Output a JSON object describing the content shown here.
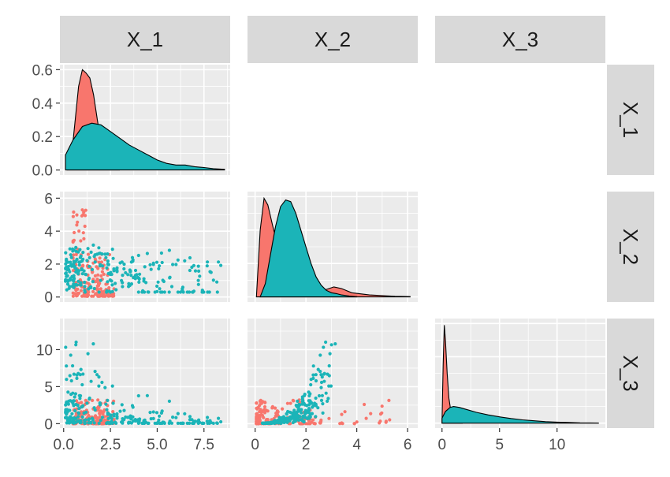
{
  "chart_data": {
    "type": "scatter",
    "title": "",
    "variables": [
      "X_1",
      "X_2",
      "X_3"
    ],
    "groups": [
      {
        "color": "#F8766D"
      },
      {
        "color": "#1BB4B8"
      }
    ],
    "axes": {
      "X_1": {
        "range": [
          -0.2,
          8.9
        ],
        "ticks": [
          0.0,
          2.5,
          5.0,
          7.5
        ],
        "tick_labels": [
          "0.0",
          "2.5",
          "5.0",
          "7.5"
        ]
      },
      "X_2": {
        "range": [
          -0.3,
          6.4
        ],
        "ticks": [
          0,
          2,
          4,
          6
        ],
        "tick_labels": [
          "0",
          "2",
          "4",
          "6"
        ]
      },
      "X_3": {
        "range": [
          -0.6,
          14.2
        ],
        "ticks": [
          0,
          5,
          10
        ],
        "tick_labels": [
          "0",
          "5",
          "10"
        ]
      }
    },
    "density_axis": {
      "range": [
        -0.03,
        0.63
      ],
      "ticks": [
        0.0,
        0.2,
        0.4,
        0.6
      ],
      "tick_labels": [
        "0.0",
        "0.2",
        "0.4",
        "0.6"
      ]
    },
    "densities": {
      "X_1": [
        {
          "x": [
            0.2,
            0.4,
            0.6,
            0.8,
            1.0,
            1.2,
            1.4,
            1.6,
            1.8,
            2.0,
            2.2,
            2.4,
            2.6,
            3.0
          ],
          "y": [
            0.0,
            0.06,
            0.28,
            0.5,
            0.6,
            0.58,
            0.55,
            0.45,
            0.3,
            0.16,
            0.07,
            0.03,
            0.01,
            0.0
          ]
        },
        {
          "x": [
            0.1,
            0.5,
            1.0,
            1.5,
            2.0,
            2.5,
            3.0,
            3.5,
            4.0,
            4.5,
            5.0,
            5.5,
            6.0,
            6.5,
            7.0,
            7.5,
            8.0,
            8.6
          ],
          "y": [
            0.09,
            0.18,
            0.26,
            0.28,
            0.27,
            0.23,
            0.19,
            0.15,
            0.12,
            0.09,
            0.06,
            0.04,
            0.03,
            0.03,
            0.02,
            0.015,
            0.008,
            0.004
          ]
        }
      ],
      "X_2": [
        {
          "x": [
            0.05,
            0.2,
            0.35,
            0.5,
            0.7,
            0.9,
            1.1,
            1.4,
            1.8,
            2.3,
            2.8,
            3.1,
            3.4,
            3.8,
            4.5,
            5.0,
            5.5,
            6.1
          ],
          "y": [
            0.0,
            0.4,
            0.59,
            0.55,
            0.42,
            0.3,
            0.2,
            0.12,
            0.06,
            0.03,
            0.045,
            0.06,
            0.05,
            0.025,
            0.012,
            0.008,
            0.004,
            0.002
          ]
        },
        {
          "x": [
            0.2,
            0.4,
            0.6,
            0.8,
            1.0,
            1.2,
            1.4,
            1.6,
            1.8,
            2.0,
            2.2,
            2.4,
            2.6,
            2.8,
            3.0,
            3.2,
            3.4,
            3.7,
            4.0
          ],
          "y": [
            0.0,
            0.08,
            0.25,
            0.42,
            0.54,
            0.58,
            0.57,
            0.5,
            0.4,
            0.3,
            0.2,
            0.12,
            0.07,
            0.04,
            0.025,
            0.02,
            0.012,
            0.006,
            0.002
          ]
        }
      ],
      "X_3": [
        {
          "x": [
            0.0,
            0.1,
            0.2,
            0.3,
            0.45,
            0.6,
            0.8,
            1.0,
            1.3,
            1.8
          ],
          "y": [
            0.02,
            0.35,
            0.59,
            0.5,
            0.3,
            0.15,
            0.06,
            0.02,
            0.005,
            0.0
          ]
        },
        {
          "x": [
            0.0,
            0.3,
            0.7,
            1.0,
            1.5,
            2.0,
            3.0,
            4.0,
            5.0,
            6.0,
            7.0,
            8.0,
            9.0,
            10.0,
            11.0,
            12.0,
            13.6
          ],
          "y": [
            0.03,
            0.07,
            0.095,
            0.1,
            0.095,
            0.085,
            0.065,
            0.05,
            0.038,
            0.028,
            0.02,
            0.014,
            0.009,
            0.006,
            0.004,
            0.002,
            0.001
          ]
        }
      ]
    }
  }
}
